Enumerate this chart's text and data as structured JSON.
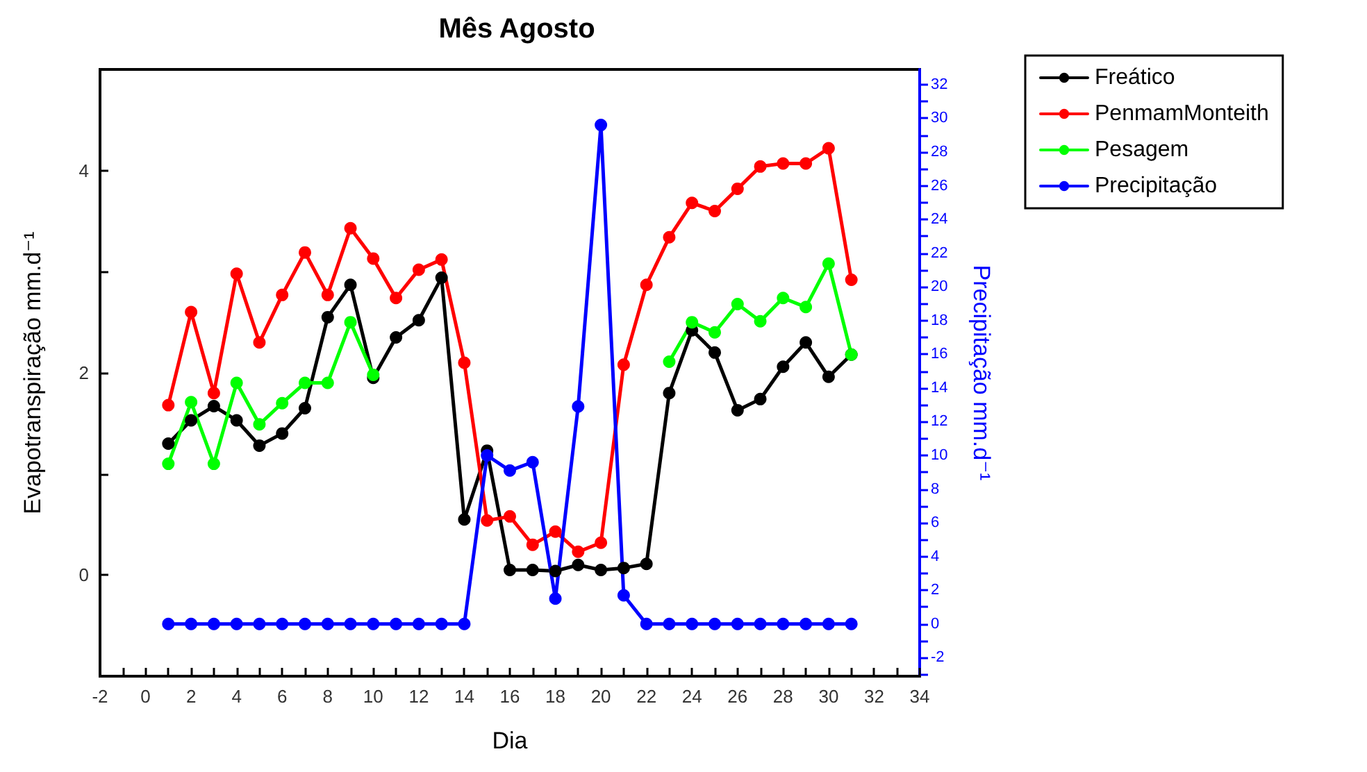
{
  "chart_data": {
    "type": "line",
    "title": "Mês Agosto",
    "xlabel": "Dia",
    "ylabel": "Evapotranspiração mm.d⁻¹",
    "y2label": "Precipitação mm.d⁻¹",
    "x": [
      1,
      2,
      3,
      4,
      5,
      6,
      7,
      8,
      9,
      10,
      11,
      12,
      13,
      14,
      15,
      16,
      17,
      18,
      19,
      20,
      21,
      22,
      23,
      24,
      25,
      26,
      27,
      28,
      29,
      30,
      31
    ],
    "series": [
      {
        "name": "Freático",
        "color": "#000000",
        "values": [
          1.3,
          1.53,
          1.67,
          1.53,
          1.28,
          1.4,
          1.65,
          2.55,
          2.87,
          1.95,
          2.35,
          2.52,
          2.94,
          0.55,
          1.23,
          0.05,
          0.05,
          0.04,
          0.1,
          0.05,
          0.07,
          0.11,
          1.8,
          2.42,
          2.2,
          1.63,
          1.74,
          2.06,
          2.3,
          1.96,
          2.18
        ]
      },
      {
        "name": "PenmamMonteith",
        "color": "#ff0000",
        "values": [
          1.68,
          2.6,
          1.8,
          2.98,
          2.3,
          2.77,
          3.19,
          2.77,
          3.43,
          3.13,
          2.74,
          3.02,
          3.12,
          2.1,
          0.54,
          0.58,
          0.3,
          0.43,
          0.23,
          0.32,
          2.08,
          2.87,
          3.34,
          3.68,
          3.6,
          3.82,
          4.04,
          4.07,
          4.07,
          4.22,
          2.92
        ]
      },
      {
        "name": "Pesagem",
        "color": "#00ff00",
        "values": [
          1.1,
          1.71,
          1.1,
          1.9,
          1.49,
          1.7,
          1.9,
          1.9,
          2.5,
          1.98,
          null,
          null,
          null,
          null,
          null,
          null,
          null,
          null,
          null,
          null,
          null,
          null,
          2.11,
          2.5,
          2.4,
          2.68,
          2.51,
          2.74,
          2.65,
          3.08,
          2.18
        ]
      },
      {
        "name": "Precipitação",
        "color": "#0000ff",
        "axis": "y2",
        "values": [
          0,
          0,
          0,
          0,
          0,
          0,
          0,
          0,
          0,
          0,
          0,
          0,
          0,
          0,
          10,
          9.1,
          9.6,
          1.5,
          12.9,
          29.6,
          1.7,
          0,
          0,
          0,
          0,
          0,
          0,
          0,
          0,
          0,
          0
        ]
      }
    ],
    "xlim": [
      -2,
      34
    ],
    "xticks": [
      -2,
      {
        "value": -1,
        "label": null
      },
      0,
      {
        "value": 1,
        "label": null
      },
      2,
      {
        "value": 3,
        "label": null
      },
      4,
      {
        "value": 5,
        "label": null
      },
      6,
      {
        "value": 7,
        "label": null
      },
      8,
      {
        "value": 9,
        "label": null
      },
      10,
      {
        "value": 11,
        "label": null
      },
      12,
      {
        "value": 13,
        "label": null
      },
      14,
      {
        "value": 15,
        "label": null
      },
      16,
      {
        "value": 17,
        "label": null
      },
      18,
      {
        "value": 19,
        "label": null
      },
      20,
      {
        "value": 21,
        "label": null
      },
      22,
      {
        "value": 23,
        "label": null
      },
      24,
      {
        "value": 25,
        "label": null
      },
      26,
      {
        "value": 27,
        "label": null
      },
      28,
      {
        "value": 29,
        "label": null
      },
      30,
      {
        "value": 31,
        "label": null
      },
      32,
      {
        "value": 33,
        "label": null
      },
      34
    ],
    "ylim": [
      -1,
      5
    ],
    "yticks": [
      {
        "value": -1,
        "label": null
      },
      0,
      {
        "value": 1,
        "label": null
      },
      2,
      {
        "value": 3,
        "label": null
      },
      4,
      {
        "value": 5,
        "label": null
      }
    ],
    "y2lim": [
      -3.1,
      32.9
    ],
    "y2ticks": [
      {
        "value": -3,
        "label": null
      },
      -2,
      {
        "value": -1,
        "label": null
      },
      0,
      {
        "value": 1,
        "label": null
      },
      2,
      {
        "value": 3,
        "label": null
      },
      4,
      {
        "value": 5,
        "label": null
      },
      6,
      {
        "value": 7,
        "label": null
      },
      8,
      {
        "value": 9,
        "label": null
      },
      10,
      {
        "value": 11,
        "label": null
      },
      12,
      {
        "value": 13,
        "label": null
      },
      14,
      {
        "value": 15,
        "label": null
      },
      16,
      {
        "value": 17,
        "label": null
      },
      18,
      {
        "value": 19,
        "label": null
      },
      20,
      {
        "value": 21,
        "label": null
      },
      22,
      {
        "value": 23,
        "label": null
      },
      24,
      {
        "value": 25,
        "label": null
      },
      26,
      {
        "value": 27,
        "label": null
      },
      28,
      {
        "value": 29,
        "label": null
      },
      30,
      {
        "value": 31,
        "label": null
      },
      32
    ],
    "legend": "top right",
    "marker": "circle",
    "line_style": "solid"
  }
}
